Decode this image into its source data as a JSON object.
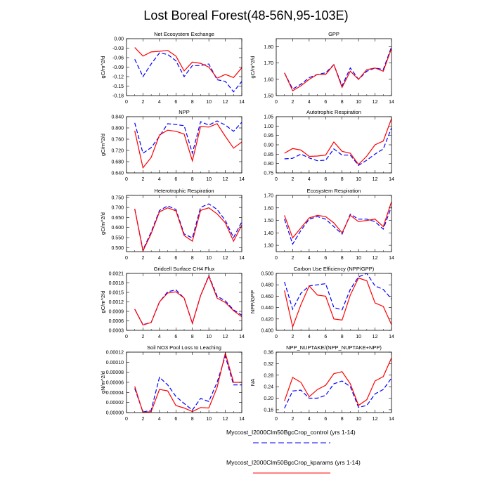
{
  "title": "Lost Boreal Forest(48-56N,95-103E)",
  "legend": {
    "items": [
      {
        "label": "Myccost_I2000Clm50BgcCrop_control (yrs 1-14)",
        "color": "#0000ff",
        "dash": "dashed"
      },
      {
        "label": "Myccost_I2000Clm50BgcCrop_kparams (yrs 1-14)",
        "color": "#ff0000",
        "dash": "solid"
      }
    ]
  },
  "chart_data": [
    {
      "type": "line",
      "title": "Net Ecosystem Exchange",
      "ylabel": "gC/m^2/d",
      "xlim": [
        0,
        14
      ],
      "xticks": [
        0,
        2,
        4,
        6,
        8,
        10,
        12,
        14
      ],
      "ylim": [
        -0.18,
        0.0
      ],
      "yticks": [
        -0.18,
        -0.15,
        -0.12,
        -0.09,
        -0.06,
        -0.03,
        0.0
      ],
      "ytick_labels": [
        "-0.18",
        "-0.15",
        "-0.12",
        "-0.09",
        "-0.06",
        "-0.03",
        "0.00"
      ],
      "x": [
        1,
        2,
        3,
        4,
        5,
        6,
        7,
        8,
        9,
        10,
        11,
        12,
        13,
        14
      ],
      "series": [
        {
          "name": "Myccost_I2000Clm50BgcCrop_control (yrs 1-14)",
          "values": [
            -0.065,
            -0.12,
            -0.08,
            -0.045,
            -0.05,
            -0.07,
            -0.12,
            -0.085,
            -0.085,
            -0.08,
            -0.13,
            -0.135,
            -0.168,
            -0.135
          ]
        },
        {
          "name": "Myccost_I2000Clm50BgcCrop_kparams (yrs 1-14)",
          "values": [
            -0.028,
            -0.055,
            -0.042,
            -0.04,
            -0.037,
            -0.055,
            -0.102,
            -0.074,
            -0.078,
            -0.09,
            -0.125,
            -0.113,
            -0.123,
            -0.092
          ]
        }
      ]
    },
    {
      "type": "line",
      "title": "GPP",
      "ylabel": "gC/m^2/d",
      "xlim": [
        0,
        14
      ],
      "xticks": [
        0,
        2,
        4,
        6,
        8,
        10,
        12,
        14
      ],
      "ylim": [
        1.5,
        1.85
      ],
      "yticks": [
        1.5,
        1.6,
        1.7,
        1.8
      ],
      "ytick_labels": [
        "1.50",
        "1.60",
        "1.70",
        "1.80"
      ],
      "x": [
        1,
        2,
        3,
        4,
        5,
        6,
        7,
        8,
        9,
        10,
        11,
        12,
        13,
        14
      ],
      "series": [
        {
          "name": "Myccost_I2000Clm50BgcCrop_control (yrs 1-14)",
          "values": [
            1.64,
            1.54,
            1.57,
            1.61,
            1.63,
            1.64,
            1.69,
            1.56,
            1.67,
            1.6,
            1.65,
            1.67,
            1.66,
            1.8
          ]
        },
        {
          "name": "Myccost_I2000Clm50BgcCrop_kparams (yrs 1-14)",
          "values": [
            1.64,
            1.53,
            1.56,
            1.6,
            1.63,
            1.63,
            1.69,
            1.55,
            1.65,
            1.6,
            1.66,
            1.67,
            1.65,
            1.79
          ]
        }
      ]
    },
    {
      "type": "line",
      "title": "NPP",
      "ylabel": "gC/m^2/d",
      "xlim": [
        0,
        14
      ],
      "xticks": [
        0,
        2,
        4,
        6,
        8,
        10,
        12,
        14
      ],
      "ylim": [
        0.64,
        0.84
      ],
      "yticks": [
        0.64,
        0.68,
        0.72,
        0.76,
        0.8,
        0.84
      ],
      "ytick_labels": [
        "0.640",
        "0.680",
        "0.720",
        "0.760",
        "0.800",
        "0.840"
      ],
      "x": [
        1,
        2,
        3,
        4,
        5,
        6,
        7,
        8,
        9,
        10,
        11,
        12,
        13,
        14
      ],
      "series": [
        {
          "name": "Myccost_I2000Clm50BgcCrop_control (yrs 1-14)",
          "values": [
            0.818,
            0.71,
            0.73,
            0.77,
            0.815,
            0.812,
            0.808,
            0.71,
            0.822,
            0.81,
            0.825,
            0.81,
            0.788,
            0.82
          ]
        },
        {
          "name": "Myccost_I2000Clm50BgcCrop_kparams (yrs 1-14)",
          "values": [
            0.79,
            0.658,
            0.695,
            0.775,
            0.792,
            0.788,
            0.778,
            0.683,
            0.805,
            0.803,
            0.815,
            0.77,
            0.728,
            0.75
          ]
        }
      ]
    },
    {
      "type": "line",
      "title": "Autotrophic Respiration",
      "ylabel": "",
      "xlim": [
        0,
        14
      ],
      "xticks": [
        0,
        2,
        4,
        6,
        8,
        10,
        12,
        14
      ],
      "ylim": [
        0.75,
        1.05
      ],
      "yticks": [
        0.75,
        0.8,
        0.85,
        0.9,
        0.95,
        1.0,
        1.05
      ],
      "ytick_labels": [
        "0.75",
        "0.80",
        "0.85",
        "0.90",
        "0.95",
        "1.00",
        "1.05"
      ],
      "x": [
        1,
        2,
        3,
        4,
        5,
        6,
        7,
        8,
        9,
        10,
        11,
        12,
        13,
        14
      ],
      "series": [
        {
          "name": "Myccost_I2000Clm50BgcCrop_control (yrs 1-14)",
          "values": [
            0.825,
            0.828,
            0.85,
            0.83,
            0.815,
            0.818,
            0.878,
            0.845,
            0.845,
            0.79,
            0.818,
            0.85,
            0.878,
            0.99
          ]
        },
        {
          "name": "Myccost_I2000Clm50BgcCrop_kparams (yrs 1-14)",
          "values": [
            0.855,
            0.88,
            0.872,
            0.838,
            0.84,
            0.845,
            0.915,
            0.865,
            0.855,
            0.795,
            0.84,
            0.9,
            0.92,
            1.04
          ]
        }
      ]
    },
    {
      "type": "line",
      "title": "Heterotrophic Respiration",
      "ylabel": "gC/m^2/d",
      "xlim": [
        0,
        14
      ],
      "xticks": [
        0,
        2,
        4,
        6,
        8,
        10,
        12,
        14
      ],
      "ylim": [
        0.48,
        0.76
      ],
      "yticks": [
        0.5,
        0.55,
        0.6,
        0.65,
        0.7,
        0.75
      ],
      "ytick_labels": [
        "0.500",
        "0.550",
        "0.600",
        "0.650",
        "0.700",
        "0.750"
      ],
      "x": [
        1,
        2,
        3,
        4,
        5,
        6,
        7,
        8,
        9,
        10,
        11,
        12,
        13,
        14
      ],
      "series": [
        {
          "name": "Myccost_I2000Clm50BgcCrop_control (yrs 1-14)",
          "values": [
            0.692,
            0.488,
            0.578,
            0.685,
            0.708,
            0.69,
            0.568,
            0.548,
            0.7,
            0.718,
            0.69,
            0.635,
            0.55,
            0.628
          ]
        },
        {
          "name": "Myccost_I2000Clm50BgcCrop_kparams (yrs 1-14)",
          "values": [
            0.693,
            0.483,
            0.57,
            0.678,
            0.698,
            0.683,
            0.56,
            0.532,
            0.685,
            0.698,
            0.668,
            0.623,
            0.532,
            0.612
          ]
        }
      ]
    },
    {
      "type": "line",
      "title": "Ecosystem Respiration",
      "ylabel": "",
      "xlim": [
        0,
        14
      ],
      "xticks": [
        0,
        2,
        4,
        6,
        8,
        10,
        12,
        14
      ],
      "ylim": [
        1.25,
        1.7
      ],
      "yticks": [
        1.3,
        1.4,
        1.5,
        1.6,
        1.7
      ],
      "ytick_labels": [
        "1.30",
        "1.40",
        "1.50",
        "1.60",
        "1.70"
      ],
      "x": [
        1,
        2,
        3,
        4,
        5,
        6,
        7,
        8,
        9,
        10,
        11,
        12,
        13,
        14
      ],
      "series": [
        {
          "name": "Myccost_I2000Clm50BgcCrop_control (yrs 1-14)",
          "values": [
            1.51,
            1.31,
            1.42,
            1.51,
            1.53,
            1.51,
            1.45,
            1.39,
            1.55,
            1.51,
            1.51,
            1.49,
            1.43,
            1.61
          ]
        },
        {
          "name": "Myccost_I2000Clm50BgcCrop_kparams (yrs 1-14)",
          "values": [
            1.54,
            1.36,
            1.44,
            1.52,
            1.54,
            1.53,
            1.48,
            1.4,
            1.54,
            1.49,
            1.5,
            1.51,
            1.45,
            1.65
          ]
        }
      ]
    },
    {
      "type": "line",
      "title": "Gridcell Surface CH4 Flux",
      "ylabel": "gC/m^2/d",
      "xlim": [
        0,
        14
      ],
      "xticks": [
        0,
        2,
        4,
        6,
        8,
        10,
        12,
        14
      ],
      "ylim": [
        0.0003,
        0.0021
      ],
      "yticks": [
        0.0003,
        0.0006,
        0.0009,
        0.0012,
        0.0015,
        0.0018,
        0.0021
      ],
      "ytick_labels": [
        "0.0003",
        "0.0006",
        "0.0009",
        "0.0012",
        "0.0015",
        "0.0018",
        "0.0021"
      ],
      "x": [
        1,
        2,
        3,
        4,
        5,
        6,
        7,
        8,
        9,
        10,
        11,
        12,
        13,
        14
      ],
      "series": [
        {
          "name": "Myccost_I2000Clm50BgcCrop_control (yrs 1-14)",
          "values": [
            0.00097,
            0.00048,
            0.00055,
            0.0012,
            0.00152,
            0.00158,
            0.00132,
            0.00052,
            0.0014,
            0.00203,
            0.00138,
            0.00123,
            0.00095,
            0.00078
          ]
        },
        {
          "name": "Myccost_I2000Clm50BgcCrop_kparams (yrs 1-14)",
          "values": [
            0.00097,
            0.00047,
            0.00055,
            0.0012,
            0.00148,
            0.00152,
            0.00132,
            0.00052,
            0.0014,
            0.00201,
            0.00132,
            0.00118,
            0.00092,
            0.00073
          ]
        }
      ]
    },
    {
      "type": "line",
      "title": "Carbon Use Efficiency (NPP/GPP)",
      "ylabel": "NPP/GPP",
      "xlim": [
        0,
        14
      ],
      "xticks": [
        0,
        2,
        4,
        6,
        8,
        10,
        12,
        14
      ],
      "ylim": [
        0.4,
        0.5
      ],
      "yticks": [
        0.4,
        0.42,
        0.44,
        0.46,
        0.48,
        0.5
      ],
      "ytick_labels": [
        "0.400",
        "0.420",
        "0.440",
        "0.460",
        "0.480",
        "0.500"
      ],
      "x": [
        1,
        2,
        3,
        4,
        5,
        6,
        7,
        8,
        9,
        10,
        11,
        12,
        13,
        14
      ],
      "series": [
        {
          "name": "Myccost_I2000Clm50BgcCrop_control (yrs 1-14)",
          "values": [
            0.485,
            0.437,
            0.465,
            0.478,
            0.48,
            0.482,
            0.44,
            0.436,
            0.472,
            0.494,
            0.5,
            0.478,
            0.472,
            0.455
          ]
        },
        {
          "name": "Myccost_I2000Clm50BgcCrop_kparams (yrs 1-14)",
          "values": [
            0.47,
            0.406,
            0.445,
            0.478,
            0.462,
            0.46,
            0.42,
            0.418,
            0.462,
            0.492,
            0.487,
            0.448,
            0.442,
            0.41
          ]
        }
      ]
    },
    {
      "type": "line",
      "title": "Soil NO3 Pool Loss to Leaching",
      "ylabel": "gN/m^2/d",
      "xlim": [
        0,
        14
      ],
      "xticks": [
        0,
        2,
        4,
        6,
        8,
        10,
        12,
        14
      ],
      "ylim": [
        0.0,
        0.00012
      ],
      "yticks": [
        0.0,
        2e-05,
        4e-05,
        6e-05,
        8e-05,
        0.0001,
        0.00012
      ],
      "ytick_labels": [
        "0.00000",
        "0.00002",
        "0.00004",
        "0.00006",
        "0.00008",
        "0.00010",
        "0.00012"
      ],
      "x": [
        1,
        2,
        3,
        4,
        5,
        6,
        7,
        8,
        9,
        10,
        11,
        12,
        13,
        14
      ],
      "series": [
        {
          "name": "Myccost_I2000Clm50BgcCrop_control (yrs 1-14)",
          "values": [
            4.8e-05,
            1e-06,
            5e-06,
            7e-05,
            5.5e-05,
            3.2e-05,
            1.8e-05,
            5e-06,
            2.8e-05,
            2.2e-05,
            6e-05,
            0.000112,
            5.5e-05,
            5.5e-05
          ]
        },
        {
          "name": "Myccost_I2000Clm50BgcCrop_kparams (yrs 1-14)",
          "values": [
            5.2e-05,
            0.0,
            2e-06,
            4.6e-05,
            4.3e-05,
            1.4e-05,
            9e-06,
            2e-06,
            1e-05,
            9e-06,
            5e-05,
            0.000118,
            6e-05,
            6e-05
          ]
        }
      ]
    },
    {
      "type": "line",
      "title": "NPP_NUPTAKE/(NPP_NUPTAKE+NPP)",
      "ylabel": "NA",
      "xlim": [
        0,
        14
      ],
      "xticks": [
        0,
        2,
        4,
        6,
        8,
        10,
        12,
        14
      ],
      "ylim": [
        0.15,
        0.36
      ],
      "yticks": [
        0.16,
        0.2,
        0.24,
        0.28,
        0.32,
        0.36
      ],
      "ytick_labels": [
        "0.16",
        "0.20",
        "0.24",
        "0.28",
        "0.32",
        "0.36"
      ],
      "x": [
        1,
        2,
        3,
        4,
        5,
        6,
        7,
        8,
        9,
        10,
        11,
        12,
        13,
        14
      ],
      "series": [
        {
          "name": "Myccost_I2000Clm50BgcCrop_control (yrs 1-14)",
          "values": [
            0.165,
            0.225,
            0.228,
            0.2,
            0.2,
            0.21,
            0.25,
            0.26,
            0.24,
            0.168,
            0.175,
            0.215,
            0.23,
            0.27
          ]
        },
        {
          "name": "Myccost_I2000Clm50BgcCrop_kparams (yrs 1-14)",
          "values": [
            0.19,
            0.272,
            0.255,
            0.205,
            0.23,
            0.245,
            0.285,
            0.292,
            0.25,
            0.175,
            0.195,
            0.26,
            0.275,
            0.34
          ]
        }
      ]
    }
  ]
}
